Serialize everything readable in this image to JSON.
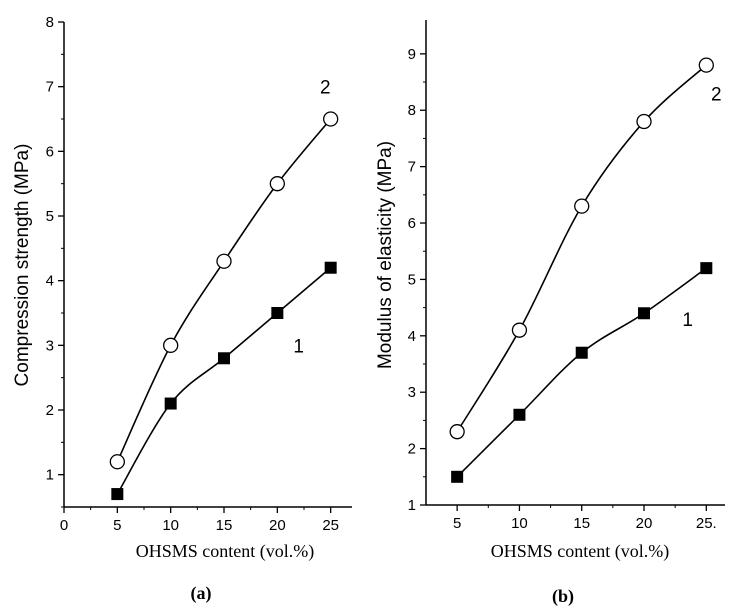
{
  "chart_data": [
    {
      "type": "line",
      "panel": "(a)",
      "ylabel": "Compression strength (MPa)",
      "xlabel": "OHSMS content (vol.%)",
      "xlim": [
        0,
        27
      ],
      "ylim": [
        0.5,
        8
      ],
      "xticks": [
        0,
        5,
        10,
        15,
        20,
        25
      ],
      "xtick_labels": [
        "0",
        "5",
        "10",
        "15",
        "20",
        "25"
      ],
      "yticks": [
        1,
        2,
        3,
        4,
        5,
        6,
        7,
        8
      ],
      "ytick_labels": [
        "1",
        "2",
        "3",
        "4",
        "5",
        "6",
        "7",
        "8"
      ],
      "x": [
        5,
        10,
        15,
        20,
        25
      ],
      "series": [
        {
          "name": "1",
          "marker": "filled-square",
          "values": [
            0.7,
            2.1,
            2.8,
            3.5,
            4.2
          ],
          "label_at": [
            22,
            3.0
          ]
        },
        {
          "name": "2",
          "marker": "open-circle",
          "values": [
            1.2,
            3.0,
            4.3,
            5.5,
            6.5
          ],
          "label_at": [
            24.5,
            7.0
          ]
        }
      ]
    },
    {
      "type": "line",
      "panel": "(b)",
      "ylabel": "Modulus of elasticity (MPa)",
      "xlabel": "OHSMS content (vol.%)",
      "xlim": [
        2.5,
        26.5
      ],
      "ylim": [
        1,
        9.6
      ],
      "xticks": [
        5,
        10,
        15,
        20,
        25
      ],
      "xtick_labels": [
        "5",
        "10",
        "15",
        "20",
        "25."
      ],
      "yticks": [
        1,
        2,
        3,
        4,
        5,
        6,
        7,
        8,
        9
      ],
      "ytick_labels": [
        "1",
        "2",
        "3",
        "4",
        "5",
        "6",
        "7",
        "8",
        "9"
      ],
      "x": [
        5,
        10,
        15,
        20,
        25
      ],
      "series": [
        {
          "name": "1",
          "marker": "filled-square",
          "values": [
            1.5,
            2.6,
            3.7,
            4.4,
            5.2
          ],
          "label_at": [
            23.5,
            4.3
          ]
        },
        {
          "name": "2",
          "marker": "open-circle",
          "values": [
            2.3,
            4.1,
            6.3,
            7.8,
            8.8
          ],
          "label_at": [
            25.8,
            8.3
          ]
        }
      ]
    }
  ]
}
